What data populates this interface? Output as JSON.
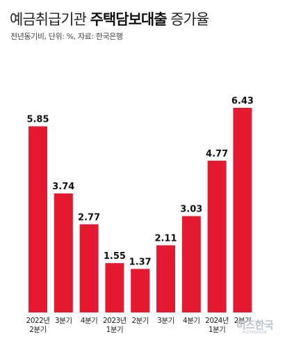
{
  "header": {
    "title_regular": "예금취급기관 ",
    "title_bold": "주택담보대출",
    "title_suffix": " 증가율",
    "subtitle": "전년동기비, 단위: %, 자료: 한국은행"
  },
  "watermark": {
    "main": "비즈한국",
    "sub": "BIZHANKOOK"
  },
  "colors": {
    "bar": "#e5192f",
    "text": "#111111",
    "axis_label": "#222222"
  },
  "chart_data": {
    "type": "bar",
    "title": "예금취급기관 주택담보대출 증가율",
    "subtitle": "전년동기비, 단위: %, 자료: 한국은행",
    "categories": [
      [
        "2022년",
        "2분기"
      ],
      [
        "3분기"
      ],
      [
        "4분기"
      ],
      [
        "2023년",
        "1분기"
      ],
      [
        "2분기"
      ],
      [
        "3분기"
      ],
      [
        "4분기"
      ],
      [
        "2024년",
        "1분기"
      ],
      [
        "2분기"
      ]
    ],
    "values": [
      5.85,
      3.74,
      2.77,
      1.55,
      1.37,
      2.11,
      3.03,
      4.77,
      6.43
    ],
    "value_labels": [
      "5.85",
      "3.74",
      "2.77",
      "1.55",
      "1.37",
      "2.11",
      "3.03",
      "4.77",
      "6.43"
    ],
    "ylim": [
      0,
      6.43
    ],
    "grid": false,
    "legend": "none"
  }
}
